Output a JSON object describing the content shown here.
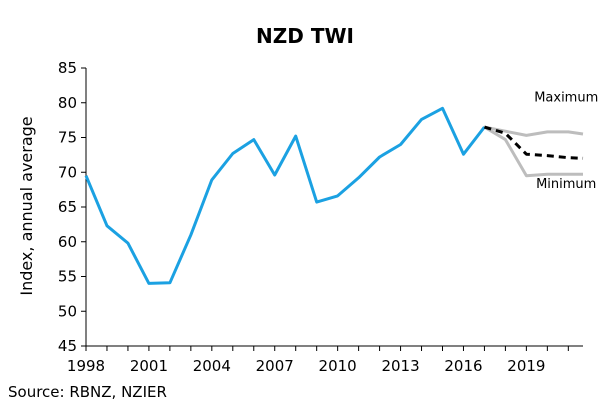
{
  "chart_data": {
    "type": "line",
    "title": "NZD TWI",
    "ylabel": "Index, annual average",
    "xlabel": "",
    "xlim": [
      1998,
      2021.7
    ],
    "ylim": [
      45,
      85
    ],
    "yticks": [
      45,
      50,
      55,
      60,
      65,
      70,
      75,
      80,
      85
    ],
    "xticks": [
      1998,
      2001,
      2004,
      2007,
      2010,
      2013,
      2016,
      2019
    ],
    "grid": false,
    "colors": {
      "history": "#1ba1e2",
      "bounds": "#bdbdbd",
      "forecast": "#000000"
    },
    "series": [
      {
        "role": "history",
        "x": [
          1998,
          1999,
          2000,
          2001,
          2002,
          2003,
          2004,
          2005,
          2006,
          2007,
          2008,
          2009,
          2010,
          2011,
          2012,
          2013,
          2014,
          2015,
          2016,
          2017
        ],
        "values": [
          69.5,
          62.3,
          59.8,
          54.0,
          54.1,
          61.0,
          68.9,
          72.7,
          74.7,
          69.6,
          75.2,
          65.7,
          66.6,
          69.2,
          72.2,
          74.0,
          77.6,
          79.2,
          72.6,
          76.5
        ]
      },
      {
        "name": "Maximum",
        "role": "bounds",
        "x": [
          2017,
          2018,
          2019,
          2020,
          2021,
          2021.7
        ],
        "values": [
          76.5,
          75.9,
          75.3,
          75.8,
          75.8,
          75.5
        ]
      },
      {
        "name": "Minimum",
        "role": "bounds",
        "x": [
          2017,
          2018,
          2019,
          2020,
          2021,
          2021.7
        ],
        "values": [
          76.5,
          74.7,
          69.5,
          69.7,
          69.7,
          69.7
        ]
      },
      {
        "role": "forecast",
        "x": [
          2017,
          2018,
          2019,
          2020,
          2021,
          2021.7
        ],
        "values": [
          76.5,
          75.6,
          72.6,
          72.4,
          72.1,
          72.0
        ]
      }
    ],
    "annotations": [
      {
        "text": "Maximum",
        "x": 2020.9,
        "y": 80.2
      },
      {
        "text": "Minimum",
        "x": 2020.9,
        "y": 67.7
      }
    ]
  },
  "source": "Source: RBNZ, NZIER"
}
